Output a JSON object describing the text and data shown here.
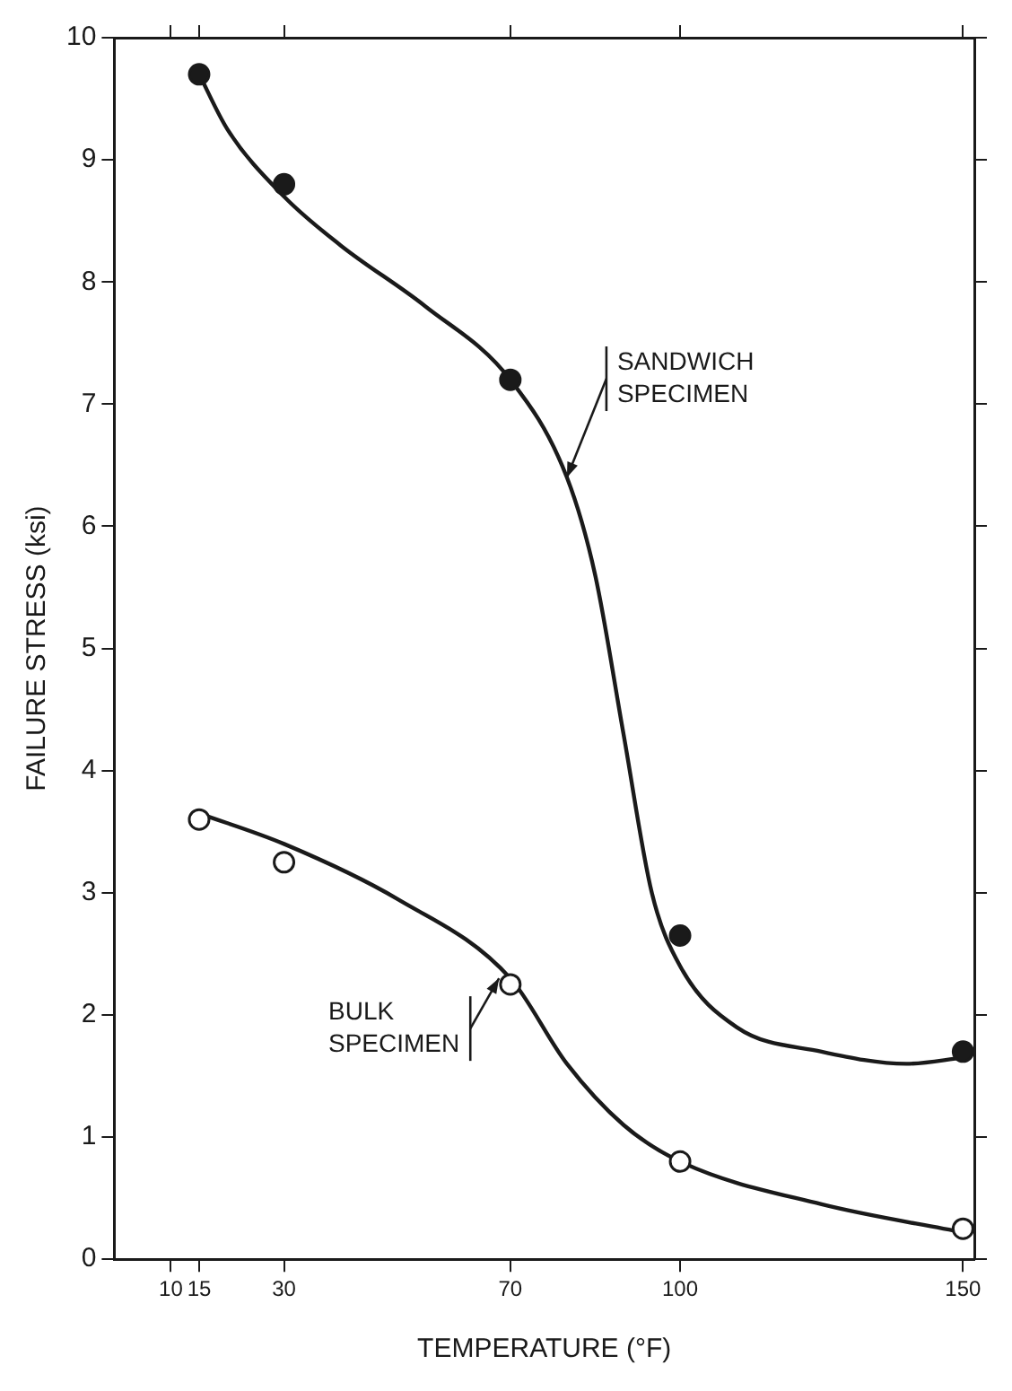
{
  "chart_data": {
    "type": "scatter",
    "xlabel": "TEMPERATURE (°F)",
    "ylabel": "FAILURE STRESS (ksi)",
    "xlim": [
      0,
      152
    ],
    "xticks": [
      10,
      15,
      30,
      70,
      100,
      150
    ],
    "ylim": [
      0,
      10
    ],
    "yticks": [
      0,
      1,
      2,
      3,
      4,
      5,
      6,
      7,
      8,
      9,
      10
    ],
    "grid": false,
    "legend": false,
    "marker": "circle",
    "series": [
      {
        "type": "scatter",
        "color": "#1a1a1a",
        "x": [
          15,
          30,
          70,
          100,
          150
        ],
        "values": [
          9.7,
          8.8,
          7.2,
          2.65,
          1.7
        ]
      },
      {
        "type": "scatter",
        "color": "#1a1a1a",
        "x": [
          15,
          30,
          70,
          100,
          150
        ],
        "values": [
          3.6,
          3.25,
          2.25,
          0.8,
          0.25
        ]
      },
      {
        "type": "line",
        "marker": "none",
        "color": "#1a1a1a",
        "x": [
          15,
          20,
          30,
          40,
          55,
          70,
          80,
          85,
          90,
          95,
          100,
          110,
          125,
          140,
          150
        ],
        "values": [
          9.7,
          9.25,
          8.7,
          8.3,
          7.8,
          7.2,
          6.4,
          5.6,
          4.3,
          3.0,
          2.4,
          1.9,
          1.7,
          1.6,
          1.65
        ]
      },
      {
        "type": "line",
        "marker": "none",
        "color": "#1a1a1a",
        "x": [
          15,
          30,
          50,
          70,
          80,
          90,
          100,
          125,
          150
        ],
        "values": [
          3.65,
          3.4,
          2.95,
          2.3,
          1.6,
          1.1,
          0.8,
          0.45,
          0.22
        ]
      }
    ],
    "annotations": [
      {
        "text": "SANDWICH SPECIMEN",
        "x": 80,
        "y": 6.4
      },
      {
        "text": "BULK SPECIMEN",
        "x": 68,
        "y": 2.3
      }
    ]
  }
}
